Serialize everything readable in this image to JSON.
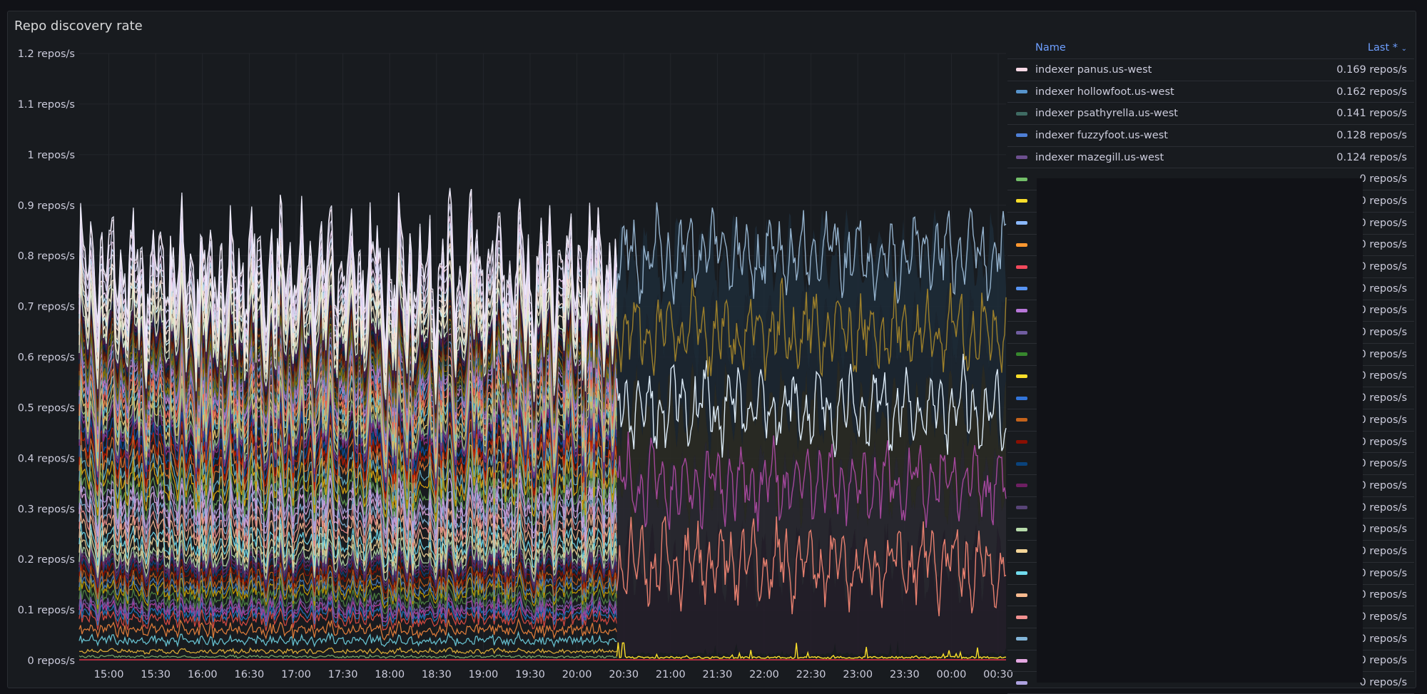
{
  "panel": {
    "title": "Repo discovery rate"
  },
  "legend": {
    "header_name": "Name",
    "header_last": "Last *",
    "sort_icon": "chevron-down-icon",
    "items": [
      {
        "name": "indexer panus.us-west",
        "value": "0.169 repos/s",
        "color": "#f7d9e5"
      },
      {
        "name": "indexer hollowfoot.us-west",
        "value": "0.162 repos/s",
        "color": "#5794cc"
      },
      {
        "name": "indexer psathyrella.us-west",
        "value": "0.141 repos/s",
        "color": "#3f6b63"
      },
      {
        "name": "indexer fuzzyfoot.us-west",
        "value": "0.128 repos/s",
        "color": "#4e7fd6"
      },
      {
        "name": "indexer mazegill.us-west",
        "value": "0.124 repos/s",
        "color": "#6d4f8e"
      },
      {
        "name": "",
        "value": "0 repos/s",
        "color": "#73bf69"
      },
      {
        "name": "",
        "value": "0 repos/s",
        "color": "#fade2a"
      },
      {
        "name": "",
        "value": "0 repos/s",
        "color": "#8ab8ff"
      },
      {
        "name": "",
        "value": "0 repos/s",
        "color": "#ff9830"
      },
      {
        "name": "",
        "value": "0 repos/s",
        "color": "#f2495c"
      },
      {
        "name": "",
        "value": "0 repos/s",
        "color": "#5794f2"
      },
      {
        "name": "",
        "value": "0 repos/s",
        "color": "#b877d9"
      },
      {
        "name": "",
        "value": "0 repos/s",
        "color": "#705da0"
      },
      {
        "name": "",
        "value": "0 repos/s",
        "color": "#37872d"
      },
      {
        "name": "",
        "value": "0 repos/s",
        "color": "#fade2a"
      },
      {
        "name": "",
        "value": "0 repos/s",
        "color": "#3274d9"
      },
      {
        "name": "",
        "value": "0 repos/s",
        "color": "#c4631b"
      },
      {
        "name": "",
        "value": "0 repos/s",
        "color": "#890f02"
      },
      {
        "name": "",
        "value": "0 repos/s",
        "color": "#0a437c"
      },
      {
        "name": "",
        "value": "0 repos/s",
        "color": "#6d1f62"
      },
      {
        "name": "",
        "value": "0 repos/s",
        "color": "#584477"
      },
      {
        "name": "",
        "value": "0 repos/s",
        "color": "#b7dbab"
      },
      {
        "name": "",
        "value": "0 repos/s",
        "color": "#f4d598"
      },
      {
        "name": "",
        "value": "0 repos/s",
        "color": "#70dbed"
      },
      {
        "name": "",
        "value": "0 repos/s",
        "color": "#f9ba8f"
      },
      {
        "name": "",
        "value": "0 repos/s",
        "color": "#f29191"
      },
      {
        "name": "",
        "value": "0 repos/s",
        "color": "#82b5d8"
      },
      {
        "name": "",
        "value": "0 repos/s",
        "color": "#e5a8e2"
      },
      {
        "name": "",
        "value": "0 repos/s",
        "color": "#aea2e0"
      }
    ]
  },
  "chart_data": {
    "type": "line",
    "title": "Repo discovery rate",
    "y_ticks": [
      "0 repos/s",
      "0.1 repos/s",
      "0.2 repos/s",
      "0.3 repos/s",
      "0.4 repos/s",
      "0.5 repos/s",
      "0.6 repos/s",
      "0.7 repos/s",
      "0.8 repos/s",
      "0.9 repos/s",
      "1 repos/s",
      "1.1 repos/s",
      "1.2 repos/s"
    ],
    "ylim": [
      0,
      1.2
    ],
    "x_ticks": [
      "15:00",
      "15:30",
      "16:00",
      "16:30",
      "17:00",
      "17:30",
      "18:00",
      "18:30",
      "19:00",
      "19:30",
      "20:00",
      "20:30",
      "21:00",
      "21:30",
      "22:00",
      "22:30",
      "23:00",
      "23:30",
      "00:00",
      "00:30"
    ],
    "xlim": [
      "14:41",
      "00:35"
    ],
    "grid": true,
    "legend": "right",
    "stacked": true,
    "note_dense_region": "Dozens of stacked series between about 14:41 and 20:26, reaching about 0.7–1.03 repos/s in total",
    "series": [
      {
        "name": "indexer mazegill.us-west",
        "color": "#6d4f8e",
        "mean": 0.124
      },
      {
        "name": "indexer fuzzyfoot.us-west",
        "color": "#4e7fd6",
        "mean": 0.128
      },
      {
        "name": "indexer psathyrella.us-west",
        "color": "#3f6b63",
        "mean": 0.141
      },
      {
        "name": "indexer hollowfoot.us-west",
        "color": "#5794cc",
        "mean": 0.162
      },
      {
        "name": "indexer panus.us-west",
        "color": "#f7d9e5",
        "mean": 0.169
      }
    ],
    "right_region_stack_tops": [
      {
        "label": "salmon line",
        "color": "#e8806f",
        "level": 0.19
      },
      {
        "label": "magenta line",
        "color": "#a3479b",
        "level": 0.35
      },
      {
        "label": "light blue-white line",
        "color": "#dbeaf7",
        "level": 0.5
      },
      {
        "label": "olive line",
        "color": "#9c7f2a",
        "level": 0.65
      },
      {
        "label": "steel blue line",
        "color": "#93b1cc",
        "level": 0.8
      },
      {
        "label": "yellow near-zero line",
        "color": "#fade2a",
        "level": 0.01
      }
    ]
  }
}
